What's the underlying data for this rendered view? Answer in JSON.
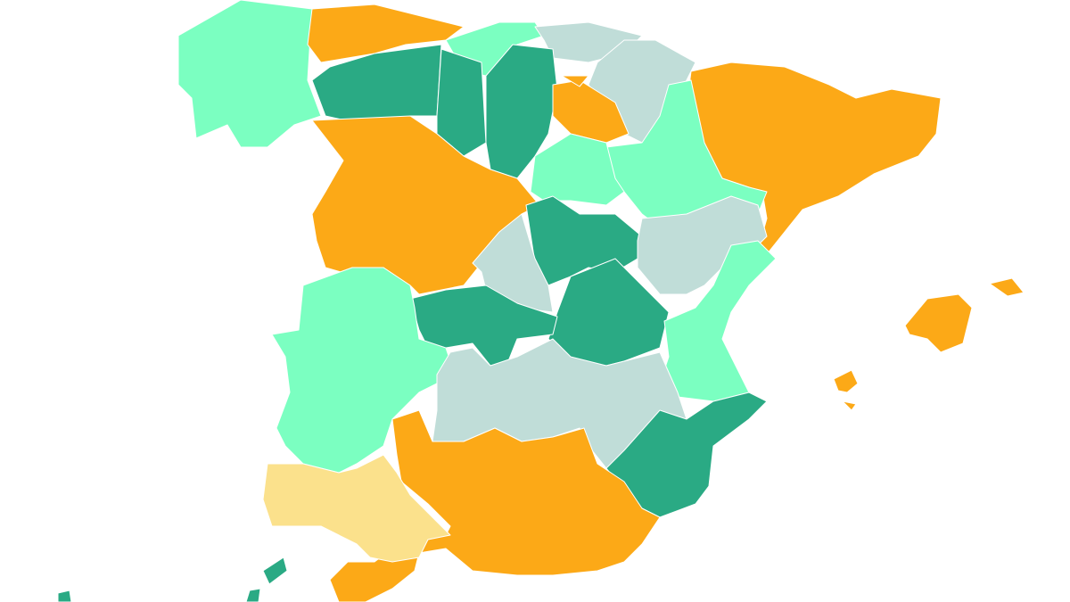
{
  "map": {
    "palette": {
      "light-green": "#7bffc1",
      "dark-green": "#2aaa84",
      "orange": "#fca917",
      "gray": "#c0ddd8",
      "yellow": "#fbe18c"
    }
  }
}
